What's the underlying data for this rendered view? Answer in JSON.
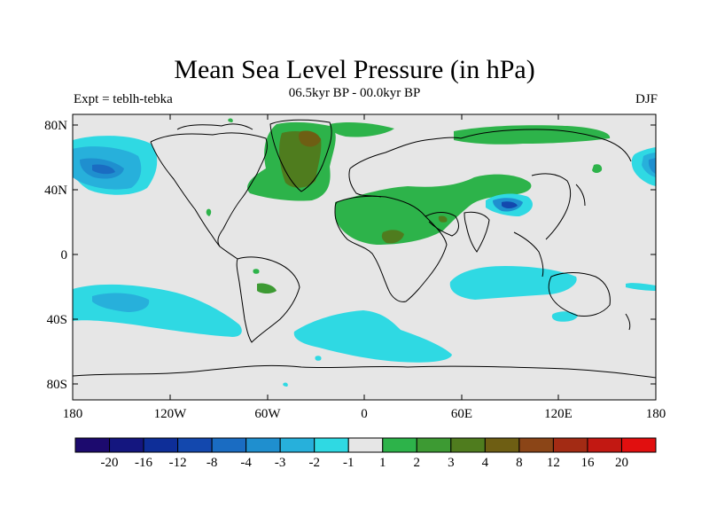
{
  "title": "Mean Sea Level Pressure (in hPa)",
  "subtitle": "06.5kyr BP - 00.0kyr BP",
  "left_label": "Expt = teblh-tebka",
  "right_label": "DJF",
  "lat_ticks": [
    "80N",
    "40N",
    "0",
    "40S",
    "80S"
  ],
  "lon_ticks": [
    "180",
    "120W",
    "60W",
    "0",
    "60E",
    "120E",
    "180"
  ],
  "colorbar": {
    "colors": [
      "#1c0a6e",
      "#14167f",
      "#0e2e98",
      "#1348ae",
      "#1a6cc2",
      "#1f8fcf",
      "#27b0db",
      "#2fd9e3",
      "#e6e6e6",
      "#2db34a",
      "#3d9a33",
      "#4f7c1e",
      "#6e5e13",
      "#8b4517",
      "#a32b14",
      "#c21812",
      "#e10f0f"
    ],
    "labels": [
      "-20",
      "-16",
      "-12",
      "-8",
      "-4",
      "-3",
      "-2",
      "-1",
      "1",
      "2",
      "3",
      "4",
      "8",
      "12",
      "16",
      "20"
    ]
  },
  "colors": {
    "land_bg": "#e6e6e6",
    "green": "#2db34a",
    "dark_green": "#3d9a33",
    "olive": "#4f7c1e",
    "cyan": "#2fd9e3",
    "light_blue": "#27b0db",
    "mid_blue": "#1f8fcf",
    "blue": "#1a6cc2",
    "coast": "#000000"
  }
}
